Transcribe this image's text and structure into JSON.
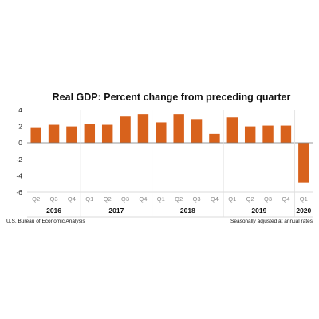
{
  "chart_data": {
    "type": "bar",
    "title": "Real GDP:  Percent change from preceding quarter",
    "categories": [
      "Q2",
      "Q3",
      "Q4",
      "Q1",
      "Q2",
      "Q3",
      "Q4",
      "Q1",
      "Q2",
      "Q3",
      "Q4",
      "Q1",
      "Q2",
      "Q3",
      "Q4",
      "Q1"
    ],
    "values": [
      1.9,
      2.2,
      2.0,
      2.3,
      2.2,
      3.2,
      3.5,
      2.5,
      3.5,
      2.9,
      1.1,
      3.1,
      2.0,
      2.1,
      2.1,
      -4.8
    ],
    "years": [
      {
        "label": "2016",
        "start": 0,
        "count": 3
      },
      {
        "label": "2017",
        "start": 3,
        "count": 4
      },
      {
        "label": "2018",
        "start": 7,
        "count": 4
      },
      {
        "label": "2019",
        "start": 11,
        "count": 4
      },
      {
        "label": "2020",
        "start": 15,
        "count": 1
      }
    ],
    "yticks": [
      4,
      2,
      0,
      -2,
      -4,
      -6
    ],
    "ylim": [
      -6,
      4
    ],
    "bar_color": "#d8621c",
    "grid": false,
    "source_note": "U.S. Bureau of Economic Analysis",
    "rate_note": "Seasonally adjusted at annual rates"
  }
}
